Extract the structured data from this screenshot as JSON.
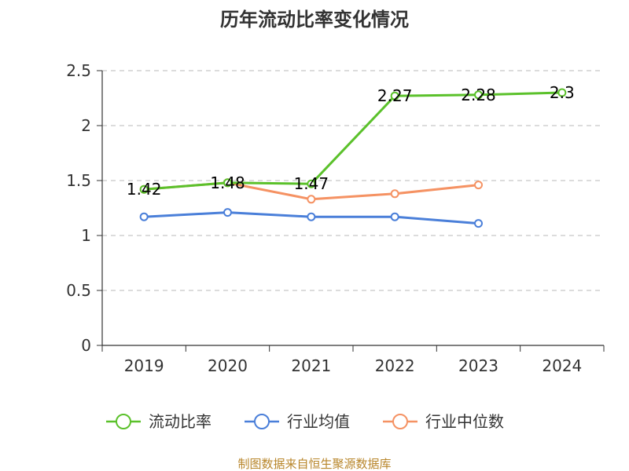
{
  "chart_data": {
    "type": "line",
    "title": "历年流动比率变化情况",
    "xlabel": "",
    "ylabel": "",
    "categories": [
      "2019",
      "2020",
      "2021",
      "2022",
      "2023",
      "2024"
    ],
    "ylim": [
      0,
      2.5
    ],
    "yticks": [
      "0",
      "0.5",
      "1",
      "1.5",
      "2",
      "2.5"
    ],
    "grid": true,
    "legend_position": "bottom",
    "series": [
      {
        "name": "流动比率",
        "color": "#5bc12b",
        "values": [
          1.42,
          1.48,
          1.47,
          2.27,
          2.28,
          2.3
        ],
        "labels": [
          "1.42",
          "1.48",
          "1.47",
          "2.27",
          "2.28",
          "2.3"
        ]
      },
      {
        "name": "行业均值",
        "color": "#4a7fd9",
        "values": [
          1.17,
          1.21,
          1.17,
          1.17,
          1.11,
          null
        ],
        "labels": []
      },
      {
        "name": "行业中位数",
        "color": "#f59263",
        "values": [
          1.42,
          1.48,
          1.33,
          1.38,
          1.46,
          null
        ],
        "labels": []
      }
    ]
  },
  "footer": {
    "source": "制图数据来自恒生聚源数据库"
  }
}
